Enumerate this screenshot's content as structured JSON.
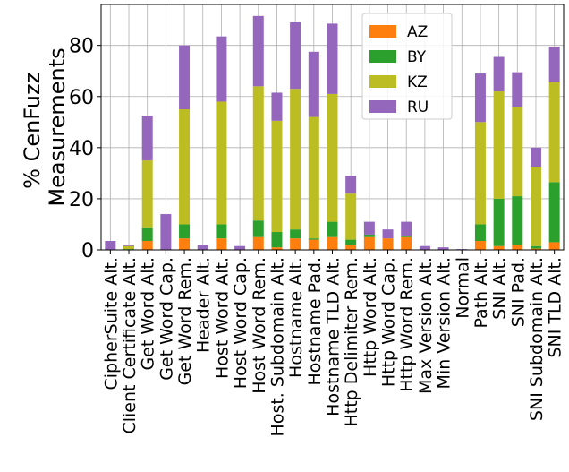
{
  "chart_data": {
    "type": "stacked_bar",
    "ylabel": [
      "% CenFuzz",
      "Measurements"
    ],
    "categories": [
      "CipherSuite Alt.",
      "Client Certificate Alt.",
      "Get Word Alt.",
      "Get Word Cap.",
      "Get Word Rem.",
      "Header Alt.",
      "Host Word Alt.",
      "Host Word Cap.",
      "Host Word Rem.",
      "Host. Subdomain Alt.",
      "Hostname Alt.",
      "Hostname Pad.",
      "Hostname TLD Alt.",
      "Http Delimiter Rem.",
      "Http Word Alt.",
      "Http Word Cap.",
      "Http Word Rem.",
      "Max Version Alt.",
      "Min Version Alt.",
      "Normal",
      "Path Alt.",
      "SNI Alt.",
      "SNI Pad.",
      "SNI Subdomain Alt.",
      "SNI TLD Alt."
    ],
    "series": [
      {
        "name": "AZ",
        "color": "#ff7f0e",
        "values": [
          0,
          0,
          3.5,
          0,
          4.5,
          0,
          4.5,
          0,
          5,
          1,
          4.5,
          4,
          5,
          2,
          5,
          4.5,
          5,
          0,
          0,
          0,
          3.5,
          1.5,
          2,
          0.5,
          3
        ]
      },
      {
        "name": "BY",
        "color": "#2ca02c",
        "values": [
          0,
          0.3,
          5,
          0,
          5.5,
          0,
          5.5,
          0,
          6.5,
          6,
          3.5,
          0.5,
          6,
          2,
          1,
          0,
          0.5,
          0,
          0,
          0,
          6.5,
          18.5,
          19,
          1,
          23.5
        ]
      },
      {
        "name": "KZ",
        "color": "#bcbd22",
        "values": [
          0,
          1.2,
          26.5,
          0,
          45,
          0,
          48,
          0,
          52.5,
          43.5,
          55,
          47.5,
          50,
          18,
          0,
          0,
          0,
          0,
          0,
          0,
          40,
          42,
          35,
          31,
          39
        ]
      },
      {
        "name": "RU",
        "color": "#9467bd",
        "values": [
          3.5,
          0.5,
          17.5,
          14,
          25,
          2,
          25.5,
          1.5,
          27.5,
          11,
          26,
          25.5,
          27.5,
          7,
          5,
          3.5,
          5.5,
          1.5,
          1,
          0.3,
          19,
          13.5,
          13.5,
          7.5,
          14
        ]
      }
    ],
    "ylim": [
      0,
      96
    ],
    "yticks": [
      0,
      20,
      40,
      60,
      80
    ],
    "grid": true,
    "legend": "upper right"
  }
}
